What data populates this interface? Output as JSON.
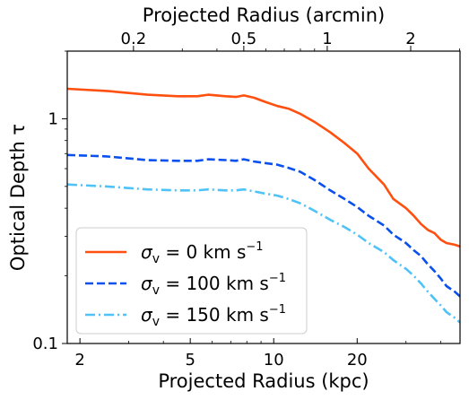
{
  "chart_data": {
    "type": "line",
    "xlabel": "Projected Radius (kpc)",
    "x2label": "Projected Radius (arcmin)",
    "ylabel": "Optical Depth τ",
    "xscale": "log",
    "yscale": "log",
    "xlim": [
      1.8,
      47
    ],
    "ylim": [
      0.1,
      2.0
    ],
    "x_ticks": [
      2,
      5,
      10,
      20
    ],
    "x_tick_labels": [
      "2",
      "5",
      "10",
      "20"
    ],
    "x2_ticks": [
      0.2,
      0.5,
      1,
      2
    ],
    "x2_tick_labels": [
      "0.2",
      "0.5",
      "1",
      "2"
    ],
    "y_ticks": [
      0.1,
      1
    ],
    "y_tick_labels": [
      "0.1",
      "1"
    ],
    "legend_position": "lower-left",
    "grid": false,
    "series": [
      {
        "name": "σv = 0 km s⁻¹",
        "legend_sigma": "σ",
        "legend_sub": "v",
        "legend_text": " = 0 km s",
        "legend_sup": "−1",
        "color": "#ff5010",
        "dash": "solid",
        "x": [
          1.8,
          2.5,
          3.5,
          4.5,
          5.3,
          5.8,
          6.7,
          7.3,
          7.8,
          8.5,
          9.3,
          10.3,
          11.3,
          12.5,
          14,
          16,
          18,
          20,
          22,
          25,
          27,
          30,
          32,
          34,
          36,
          38,
          40,
          42,
          45,
          47
        ],
        "y": [
          1.36,
          1.33,
          1.28,
          1.26,
          1.26,
          1.28,
          1.26,
          1.25,
          1.27,
          1.24,
          1.19,
          1.14,
          1.11,
          1.05,
          0.97,
          0.87,
          0.78,
          0.7,
          0.6,
          0.51,
          0.44,
          0.4,
          0.37,
          0.34,
          0.32,
          0.31,
          0.29,
          0.28,
          0.275,
          0.27
        ]
      },
      {
        "name": "σv = 100 km s⁻¹",
        "legend_sigma": "σ",
        "legend_sub": "v",
        "legend_text": " = 100 km s",
        "legend_sup": "−1",
        "color": "#0a50ee",
        "dash": "dashed",
        "x": [
          1.8,
          2.5,
          3.5,
          4.5,
          5.3,
          5.8,
          6.7,
          7.3,
          7.8,
          8.5,
          9.3,
          10.3,
          11.3,
          12.5,
          14,
          16,
          18,
          20,
          22,
          25,
          27,
          30,
          32,
          34,
          36,
          38,
          40,
          42,
          45,
          47
        ],
        "y": [
          0.69,
          0.68,
          0.655,
          0.65,
          0.65,
          0.66,
          0.655,
          0.65,
          0.66,
          0.645,
          0.635,
          0.625,
          0.605,
          0.58,
          0.535,
          0.48,
          0.44,
          0.405,
          0.37,
          0.335,
          0.305,
          0.28,
          0.26,
          0.245,
          0.225,
          0.21,
          0.195,
          0.18,
          0.17,
          0.162
        ]
      },
      {
        "name": "σv = 150 km s⁻¹",
        "legend_sigma": "σ",
        "legend_sub": "v",
        "legend_text": " = 150 km s",
        "legend_sup": "−1",
        "color": "#4fc3f7",
        "dash": "dashdot",
        "x": [
          1.8,
          2.5,
          3.5,
          4.5,
          5.3,
          5.8,
          6.7,
          7.3,
          7.8,
          8.5,
          9.3,
          10.3,
          11.3,
          12.5,
          14,
          16,
          18,
          20,
          22,
          25,
          27,
          30,
          32,
          34,
          36,
          38,
          40,
          42,
          45,
          47
        ],
        "y": [
          0.51,
          0.5,
          0.485,
          0.48,
          0.48,
          0.485,
          0.48,
          0.48,
          0.485,
          0.475,
          0.465,
          0.455,
          0.44,
          0.42,
          0.39,
          0.355,
          0.33,
          0.305,
          0.28,
          0.255,
          0.235,
          0.215,
          0.2,
          0.185,
          0.17,
          0.158,
          0.148,
          0.138,
          0.13,
          0.124
        ]
      }
    ]
  }
}
